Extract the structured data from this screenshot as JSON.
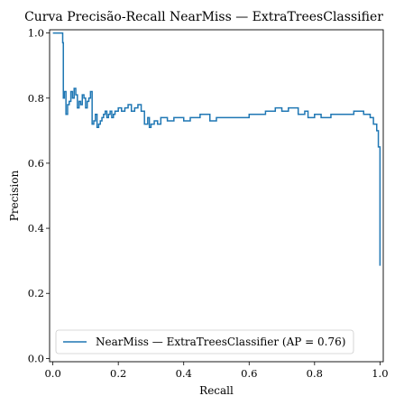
{
  "chart_data": {
    "type": "line",
    "title": "Curva Precisão-Recall NearMiss — ExtraTreesClassifier",
    "xlabel": "Recall",
    "ylabel": "Precision",
    "xlim": [
      -0.01,
      1.01
    ],
    "ylim": [
      -0.01,
      1.01
    ],
    "grid": false,
    "legend_position": "lower-left",
    "x_ticks": [
      "0.0",
      "0.2",
      "0.4",
      "0.6",
      "0.8",
      "1.0"
    ],
    "y_ticks": [
      "0.0",
      "0.2",
      "0.4",
      "0.6",
      "0.8",
      "1.0"
    ],
    "series": [
      {
        "name": "NearMiss — ExtraTreesClassifier (AP = 0.76)",
        "color": "#1f77b4",
        "drawstyle": "steps-post",
        "x": [
          0.0,
          0.03,
          0.032,
          0.035,
          0.04,
          0.045,
          0.05,
          0.055,
          0.06,
          0.065,
          0.07,
          0.075,
          0.08,
          0.085,
          0.09,
          0.095,
          0.1,
          0.105,
          0.11,
          0.115,
          0.12,
          0.125,
          0.13,
          0.135,
          0.14,
          0.145,
          0.15,
          0.155,
          0.16,
          0.165,
          0.17,
          0.175,
          0.18,
          0.185,
          0.19,
          0.2,
          0.21,
          0.22,
          0.23,
          0.24,
          0.25,
          0.26,
          0.27,
          0.28,
          0.29,
          0.295,
          0.3,
          0.31,
          0.32,
          0.33,
          0.35,
          0.37,
          0.4,
          0.42,
          0.45,
          0.48,
          0.5,
          0.55,
          0.6,
          0.65,
          0.68,
          0.7,
          0.72,
          0.75,
          0.77,
          0.78,
          0.8,
          0.82,
          0.85,
          0.88,
          0.9,
          0.92,
          0.95,
          0.97,
          0.98,
          0.99,
          0.995,
          1.0
        ],
        "y": [
          1.0,
          0.97,
          0.8,
          0.82,
          0.75,
          0.78,
          0.79,
          0.82,
          0.8,
          0.83,
          0.81,
          0.77,
          0.79,
          0.78,
          0.81,
          0.8,
          0.77,
          0.79,
          0.8,
          0.82,
          0.72,
          0.73,
          0.75,
          0.71,
          0.72,
          0.73,
          0.74,
          0.75,
          0.76,
          0.74,
          0.75,
          0.76,
          0.74,
          0.75,
          0.76,
          0.77,
          0.76,
          0.77,
          0.78,
          0.76,
          0.77,
          0.78,
          0.76,
          0.72,
          0.74,
          0.71,
          0.72,
          0.73,
          0.72,
          0.74,
          0.73,
          0.74,
          0.73,
          0.74,
          0.75,
          0.73,
          0.74,
          0.74,
          0.75,
          0.76,
          0.77,
          0.76,
          0.77,
          0.75,
          0.76,
          0.74,
          0.75,
          0.74,
          0.75,
          0.75,
          0.75,
          0.76,
          0.75,
          0.74,
          0.72,
          0.7,
          0.65,
          0.285
        ]
      }
    ]
  }
}
